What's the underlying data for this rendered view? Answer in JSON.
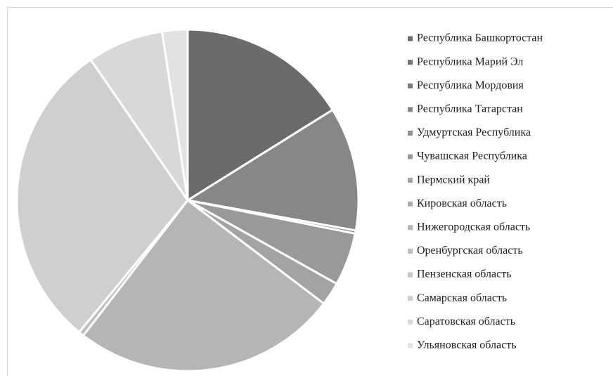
{
  "chart_data": {
    "type": "pie",
    "categories": [
      "Республика Башкортостан",
      "Республика Марий Эл",
      "Республика Мордовия",
      "Республика Татарстан",
      "Удмуртская Республика",
      "Чувашская Республика",
      "Пермский край",
      "Кировская область",
      "Нижегородская область",
      "Оренбургская область",
      "Пензенская область",
      "Самарская область",
      "Саратовская область",
      "Ульяновская область"
    ],
    "values": [
      16.1,
      0,
      0,
      11.7,
      0.3,
      5.0,
      2.2,
      0,
      25.1,
      0.5,
      0,
      29.4,
      7.2,
      2.4
    ],
    "colors": [
      "#6b6b6b",
      "#747474",
      "#7d7d7d",
      "#878787",
      "#909090",
      "#999999",
      "#a3a3a3",
      "#acacac",
      "#b5b5b5",
      "#bebebe",
      "#c6c6c6",
      "#cfcfcf",
      "#d8d8d8",
      "#e2e2e2"
    ],
    "legend": "right"
  }
}
